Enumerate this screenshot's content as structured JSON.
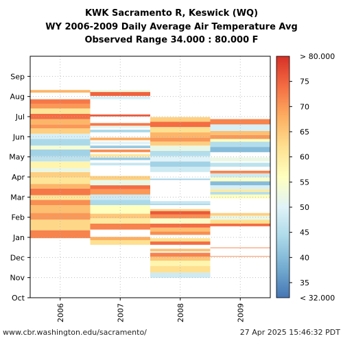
{
  "header": {
    "title_line1": "KWK Sacramento R, Keswick (WQ)",
    "title_line2": "WY 2006-2009 Daily Average Air Temperature Avg",
    "title_line3": "Observed Range 34.000 : 80.000 F"
  },
  "footer": {
    "left": "www.cbr.washington.edu/sacramento/",
    "right": "27 Apr 2025 15:46:32 PDT"
  },
  "chart_data": {
    "type": "heatmap",
    "x_categories": [
      "2006",
      "2007",
      "2008",
      "2009"
    ],
    "y_months": [
      "Oct",
      "Nov",
      "Dec",
      "Jan",
      "Feb",
      "Mar",
      "Apr",
      "May",
      "Jun",
      "Jul",
      "Aug",
      "Sep"
    ],
    "colorbar": {
      "min": 32,
      "max": 80,
      "ticks": [
        35,
        40,
        45,
        50,
        55,
        60,
        65,
        70,
        75
      ],
      "top_label": "> 80.000",
      "bottom_label": "< 32.000",
      "colors": [
        "#4575b4",
        "#74add1",
        "#abd9e9",
        "#e0f3f8",
        "#ffffbf",
        "#fee090",
        "#fdae61",
        "#f46d43",
        "#d73027"
      ]
    },
    "observed_range": [
      34,
      80
    ],
    "grid": true,
    "series": [
      {
        "name": "2006",
        "blocks": [
          {
            "start": 90,
            "end": 102,
            "value": 72
          },
          {
            "start": 102,
            "end": 118,
            "value": 63
          },
          {
            "start": 118,
            "end": 128,
            "value": 70
          },
          {
            "start": 128,
            "end": 140,
            "value": 66
          },
          {
            "start": 140,
            "end": 148,
            "value": 71
          },
          {
            "start": 148,
            "end": 155,
            "value": 61
          },
          {
            "start": 155,
            "end": 165,
            "value": 73
          },
          {
            "start": 165,
            "end": 172,
            "value": 67
          },
          {
            "start": 172,
            "end": 182,
            "value": 61
          },
          {
            "start": 182,
            "end": 190,
            "value": 64
          },
          {
            "start": 190,
            "end": 196,
            "value": 52
          },
          {
            "start": 196,
            "end": 206,
            "value": 58
          },
          {
            "start": 206,
            "end": 214,
            "value": 46
          },
          {
            "start": 214,
            "end": 224,
            "value": 43
          },
          {
            "start": 224,
            "end": 230,
            "value": 54
          },
          {
            "start": 230,
            "end": 240,
            "value": 44
          },
          {
            "start": 240,
            "end": 248,
            "value": 49
          },
          {
            "start": 248,
            "end": 256,
            "value": 64
          },
          {
            "start": 256,
            "end": 262,
            "value": 70
          },
          {
            "start": 262,
            "end": 270,
            "value": 67
          },
          {
            "start": 270,
            "end": 278,
            "value": 74
          },
          {
            "start": 278,
            "end": 286,
            "value": 61
          },
          {
            "start": 286,
            "end": 293,
            "value": 70
          },
          {
            "start": 293,
            "end": 300,
            "value": 73
          },
          {
            "start": 310,
            "end": 314,
            "value": 67
          }
        ]
      },
      {
        "name": "2007",
        "blocks": [
          {
            "start": 80,
            "end": 87,
            "value": 62
          },
          {
            "start": 87,
            "end": 92,
            "value": 68
          },
          {
            "start": 103,
            "end": 112,
            "value": 72
          },
          {
            "start": 112,
            "end": 120,
            "value": 60
          },
          {
            "start": 120,
            "end": 127,
            "value": 65
          },
          {
            "start": 127,
            "end": 140,
            "value": 56
          },
          {
            "start": 140,
            "end": 148,
            "value": 44
          },
          {
            "start": 148,
            "end": 156,
            "value": 48
          },
          {
            "start": 156,
            "end": 164,
            "value": 70
          },
          {
            "start": 164,
            "end": 170,
            "value": 74
          },
          {
            "start": 170,
            "end": 178,
            "value": 52
          },
          {
            "start": 178,
            "end": 184,
            "value": 64
          },
          {
            "start": 200,
            "end": 204,
            "value": 47
          },
          {
            "start": 208,
            "end": 212,
            "value": 42
          },
          {
            "start": 213,
            "end": 217,
            "value": 61
          },
          {
            "start": 220,
            "end": 224,
            "value": 71
          },
          {
            "start": 226,
            "end": 230,
            "value": 42
          },
          {
            "start": 232,
            "end": 236,
            "value": 50
          },
          {
            "start": 238,
            "end": 242,
            "value": 68
          },
          {
            "start": 250,
            "end": 254,
            "value": 44
          },
          {
            "start": 256,
            "end": 260,
            "value": 51
          },
          {
            "start": 260,
            "end": 264,
            "value": 73
          },
          {
            "start": 274,
            "end": 277,
            "value": 76
          },
          {
            "start": 300,
            "end": 304,
            "value": 49
          },
          {
            "start": 305,
            "end": 311,
            "value": 75
          },
          {
            "start": 311,
            "end": 314,
            "value": 53
          }
        ]
      },
      {
        "name": "2008",
        "blocks": [
          {
            "start": 30,
            "end": 38,
            "value": 48
          },
          {
            "start": 38,
            "end": 48,
            "value": 62
          },
          {
            "start": 48,
            "end": 56,
            "value": 58
          },
          {
            "start": 56,
            "end": 62,
            "value": 65
          },
          {
            "start": 62,
            "end": 68,
            "value": 72
          },
          {
            "start": 70,
            "end": 74,
            "value": 66
          },
          {
            "start": 80,
            "end": 85,
            "value": 74
          },
          {
            "start": 85,
            "end": 90,
            "value": 62
          },
          {
            "start": 95,
            "end": 100,
            "value": 71
          },
          {
            "start": 100,
            "end": 106,
            "value": 66
          },
          {
            "start": 106,
            "end": 112,
            "value": 74
          },
          {
            "start": 112,
            "end": 120,
            "value": 55
          },
          {
            "start": 120,
            "end": 126,
            "value": 71
          },
          {
            "start": 126,
            "end": 131,
            "value": 76
          },
          {
            "start": 131,
            "end": 134,
            "value": 64
          },
          {
            "start": 140,
            "end": 142,
            "value": 44
          },
          {
            "start": 142,
            "end": 146,
            "value": 47
          },
          {
            "start": 178,
            "end": 180,
            "value": 43
          },
          {
            "start": 190,
            "end": 198,
            "value": 48
          },
          {
            "start": 198,
            "end": 206,
            "value": 43
          },
          {
            "start": 206,
            "end": 214,
            "value": 50
          },
          {
            "start": 214,
            "end": 222,
            "value": 45
          },
          {
            "start": 222,
            "end": 230,
            "value": 52
          },
          {
            "start": 230,
            "end": 236,
            "value": 64
          },
          {
            "start": 236,
            "end": 242,
            "value": 70
          },
          {
            "start": 242,
            "end": 250,
            "value": 67
          },
          {
            "start": 250,
            "end": 258,
            "value": 62
          },
          {
            "start": 258,
            "end": 266,
            "value": 74
          },
          {
            "start": 266,
            "end": 273,
            "value": 64
          }
        ]
      },
      {
        "name": "2009",
        "blocks": [
          {
            "start": 62,
            "end": 63,
            "value": 71
          },
          {
            "start": 75,
            "end": 76,
            "value": 72
          },
          {
            "start": 108,
            "end": 112,
            "value": 74
          },
          {
            "start": 112,
            "end": 118,
            "value": 62
          },
          {
            "start": 118,
            "end": 124,
            "value": 52
          },
          {
            "start": 124,
            "end": 128,
            "value": 64
          },
          {
            "start": 150,
            "end": 156,
            "value": 56
          },
          {
            "start": 156,
            "end": 160,
            "value": 45
          },
          {
            "start": 160,
            "end": 164,
            "value": 60
          },
          {
            "start": 164,
            "end": 170,
            "value": 49
          },
          {
            "start": 170,
            "end": 176,
            "value": 40
          },
          {
            "start": 176,
            "end": 182,
            "value": 55
          },
          {
            "start": 182,
            "end": 188,
            "value": 48
          },
          {
            "start": 188,
            "end": 192,
            "value": 72
          },
          {
            "start": 198,
            "end": 204,
            "value": 46
          },
          {
            "start": 206,
            "end": 212,
            "value": 52
          },
          {
            "start": 220,
            "end": 228,
            "value": 40
          },
          {
            "start": 228,
            "end": 236,
            "value": 45
          },
          {
            "start": 236,
            "end": 240,
            "value": 56
          },
          {
            "start": 240,
            "end": 246,
            "value": 70
          },
          {
            "start": 246,
            "end": 252,
            "value": 66
          },
          {
            "start": 252,
            "end": 262,
            "value": 49
          },
          {
            "start": 262,
            "end": 270,
            "value": 72
          }
        ]
      }
    ]
  }
}
